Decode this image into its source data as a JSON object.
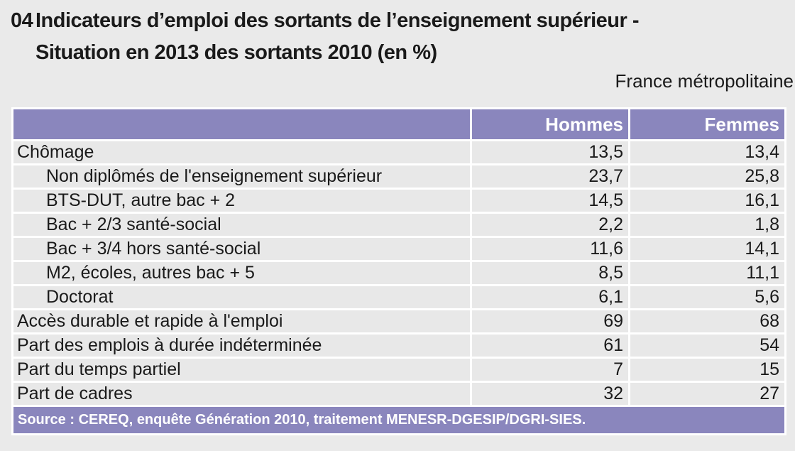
{
  "header": {
    "number": "04",
    "title_line1": "Indicateurs d’emploi des sortants de l’enseignement supérieur -",
    "title_line2": "Situation en 2013 des sortants 2010 (en %)",
    "region": "France métropolitaine"
  },
  "table": {
    "columns": [
      "Hommes",
      "Femmes"
    ],
    "rows": [
      {
        "label": "Chômage",
        "indent": false,
        "hommes": "13,5",
        "femmes": "13,4"
      },
      {
        "label": "Non diplômés de l'enseignement supérieur",
        "indent": true,
        "hommes": "23,7",
        "femmes": "25,8"
      },
      {
        "label": "BTS-DUT, autre bac + 2",
        "indent": true,
        "hommes": "14,5",
        "femmes": "16,1"
      },
      {
        "label": "Bac + 2/3 santé-social",
        "indent": true,
        "hommes": "2,2",
        "femmes": "1,8"
      },
      {
        "label": "Bac + 3/4 hors santé-social",
        "indent": true,
        "hommes": "11,6",
        "femmes": "14,1"
      },
      {
        "label": "M2, écoles, autres bac + 5",
        "indent": true,
        "hommes": "8,5",
        "femmes": "11,1"
      },
      {
        "label": "Doctorat",
        "indent": true,
        "hommes": "6,1",
        "femmes": "5,6"
      },
      {
        "label": "Accès durable et rapide à l'emploi",
        "indent": false,
        "hommes": "69",
        "femmes": "68"
      },
      {
        "label": "Part des emplois à durée indéterminée",
        "indent": false,
        "hommes": "61",
        "femmes": "54"
      },
      {
        "label": "Part du temps partiel",
        "indent": false,
        "hommes": "7",
        "femmes": "15"
      },
      {
        "label": "Part de cadres",
        "indent": false,
        "hommes": "32",
        "femmes": "27"
      }
    ],
    "source": "Source : CEREQ, enquête Génération 2010, traitement MENESR-DGESIP/DGRI-SIES."
  },
  "colors": {
    "accent_purple": "#8a86bd",
    "page_bg": "#eaeaea",
    "cell_bg": "#e8e8e8",
    "grid_white": "#ffffff",
    "text": "#1a1a1a",
    "header_text": "#ffffff"
  },
  "chart_data": {
    "type": "table",
    "title": "04 Indicateurs d’emploi des sortants de l’enseignement supérieur - Situation en 2013 des sortants 2010 (en %)",
    "subtitle": "France métropolitaine",
    "categories": [
      "Chômage",
      "Non diplômés de l'enseignement supérieur",
      "BTS-DUT, autre bac + 2",
      "Bac + 2/3 santé-social",
      "Bac + 3/4 hors santé-social",
      "M2, écoles, autres bac + 5",
      "Doctorat",
      "Accès durable et rapide à l'emploi",
      "Part des emplois à durée indéterminée",
      "Part du temps partiel",
      "Part de cadres"
    ],
    "series": [
      {
        "name": "Hommes",
        "values": [
          13.5,
          23.7,
          14.5,
          2.2,
          11.6,
          8.5,
          6.1,
          69,
          61,
          7,
          32
        ]
      },
      {
        "name": "Femmes",
        "values": [
          13.4,
          25.8,
          16.1,
          1.8,
          14.1,
          11.1,
          5.6,
          68,
          54,
          15,
          27
        ]
      }
    ],
    "unit": "%",
    "source": "Source : CEREQ, enquête Génération 2010, traitement MENESR-DGESIP/DGRI-SIES."
  }
}
